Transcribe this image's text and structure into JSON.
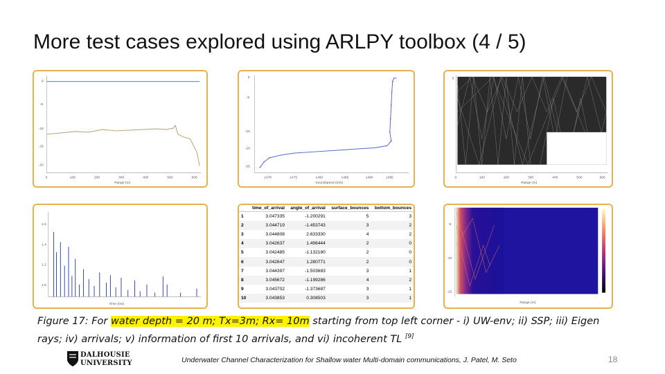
{
  "slide": {
    "title": "More test cases explored using ARLPY toolbox (4 / 5)",
    "page_number": "18"
  },
  "table": {
    "headers": [
      "",
      "time_of_arrival",
      "angle_of_arrival",
      "surface_bounces",
      "bottom_bounces"
    ],
    "rows": [
      [
        "1",
        "3.047335",
        "-1.200291",
        "5",
        "3"
      ],
      [
        "2",
        "3.044719",
        "-1.453743",
        "3",
        "2"
      ],
      [
        "3",
        "3.044808",
        "2.633330",
        "4",
        "2"
      ],
      [
        "4",
        "3.042637",
        "1.496444",
        "2",
        "0"
      ],
      [
        "5",
        "3.042485",
        "-1.132180",
        "2",
        "0"
      ],
      [
        "6",
        "3.042647",
        "1.280771",
        "2",
        "0"
      ],
      [
        "7",
        "3.044397",
        "-1.503683",
        "3",
        "1"
      ],
      [
        "8",
        "3.045672",
        "-1.199286",
        "4",
        "2"
      ],
      [
        "9",
        "3.043702",
        "-1.373687",
        "3",
        "1"
      ],
      [
        "10",
        "3.043853",
        "0.308503",
        "3",
        "1"
      ]
    ]
  },
  "caption": {
    "part1": "Figure 17: For ",
    "highlight": "water depth = 20 m; Tx=3m; Rx= 10m",
    "part2": " starting from top left corner -  i) UW-env; ii) SSP; iii) Eigen rays; iv) arrivals; v) information of first 10 arrivals, and vi) incoherent TL ",
    "ref": "[9]"
  },
  "footer": {
    "logo_line1": "DALHOUSIE",
    "logo_line2": "UNIVERSITY",
    "text": "Underwater Channel Characterization for Shallow water Multi-domain communications, J. Patel, M. Seto"
  },
  "plots": {
    "uw_env": {
      "xlabel": "Range (m)",
      "ylabel": "Depth (m)",
      "xticks": [
        "0",
        "100",
        "200",
        "300",
        "400",
        "500",
        "600"
      ],
      "yticks": [
        "0",
        "-5",
        "-10",
        "-15",
        "-20",
        "-25"
      ]
    },
    "ssp": {
      "xlabel": "Soundspeed (m/s)",
      "ylabel": "Depth (m)",
      "xticks": [
        "1470",
        "1475",
        "1480",
        "1485",
        "1490",
        "1495"
      ],
      "yticks": [
        "0",
        "-5",
        "-10",
        "-15",
        "-20",
        "-25"
      ]
    },
    "eigen": {
      "xlabel": "Range (m)",
      "ylabel": "Depth (m)",
      "xticks": [
        "0",
        "100",
        "200",
        "300",
        "400",
        "500",
        "600"
      ]
    },
    "arrivals": {
      "xlabel": "Time (ms)",
      "ylabel": "Amplitude"
    },
    "tl": {
      "xlabel": "Range (m)",
      "ylabel": "Depth (m)"
    }
  },
  "colors": {
    "panel_border": "#e6b24e",
    "highlight": "#fff200",
    "ssp_line": "#5566cc",
    "arrivals_bar": "#1f2fa0",
    "surface": "#4da6e6"
  }
}
